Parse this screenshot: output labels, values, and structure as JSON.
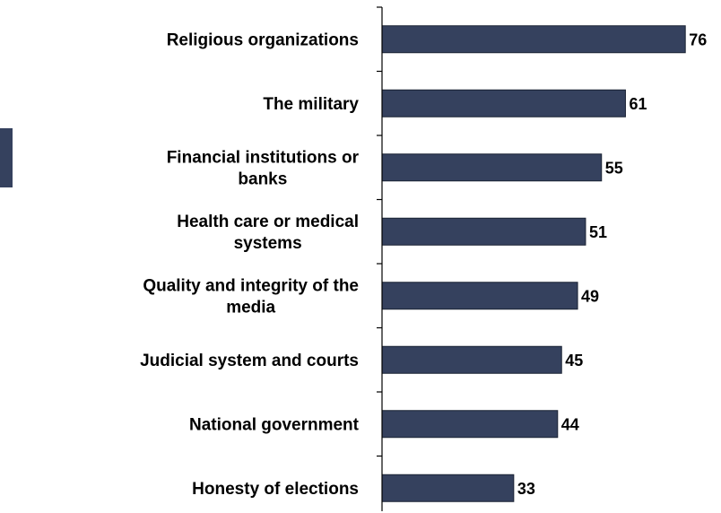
{
  "colors": {
    "bar": "#35415e",
    "bar_stroke": "#1a2233",
    "axis": "#000000"
  },
  "chart_data": {
    "type": "bar",
    "orientation": "horizontal",
    "title": "",
    "xlabel": "",
    "ylabel": "",
    "xlim": [
      0,
      80
    ],
    "grid": false,
    "legend": "none",
    "categories": [
      [
        "Religious organizations"
      ],
      [
        "The military"
      ],
      [
        "Financial institutions or",
        "banks"
      ],
      [
        "Health care or medical",
        "systems"
      ],
      [
        "Quality and integrity of the",
        "media"
      ],
      [
        "Judicial system and courts"
      ],
      [
        "National government"
      ],
      [
        "Honesty of elections"
      ]
    ],
    "values": [
      76,
      61,
      55,
      51,
      49,
      45,
      44,
      33
    ]
  }
}
